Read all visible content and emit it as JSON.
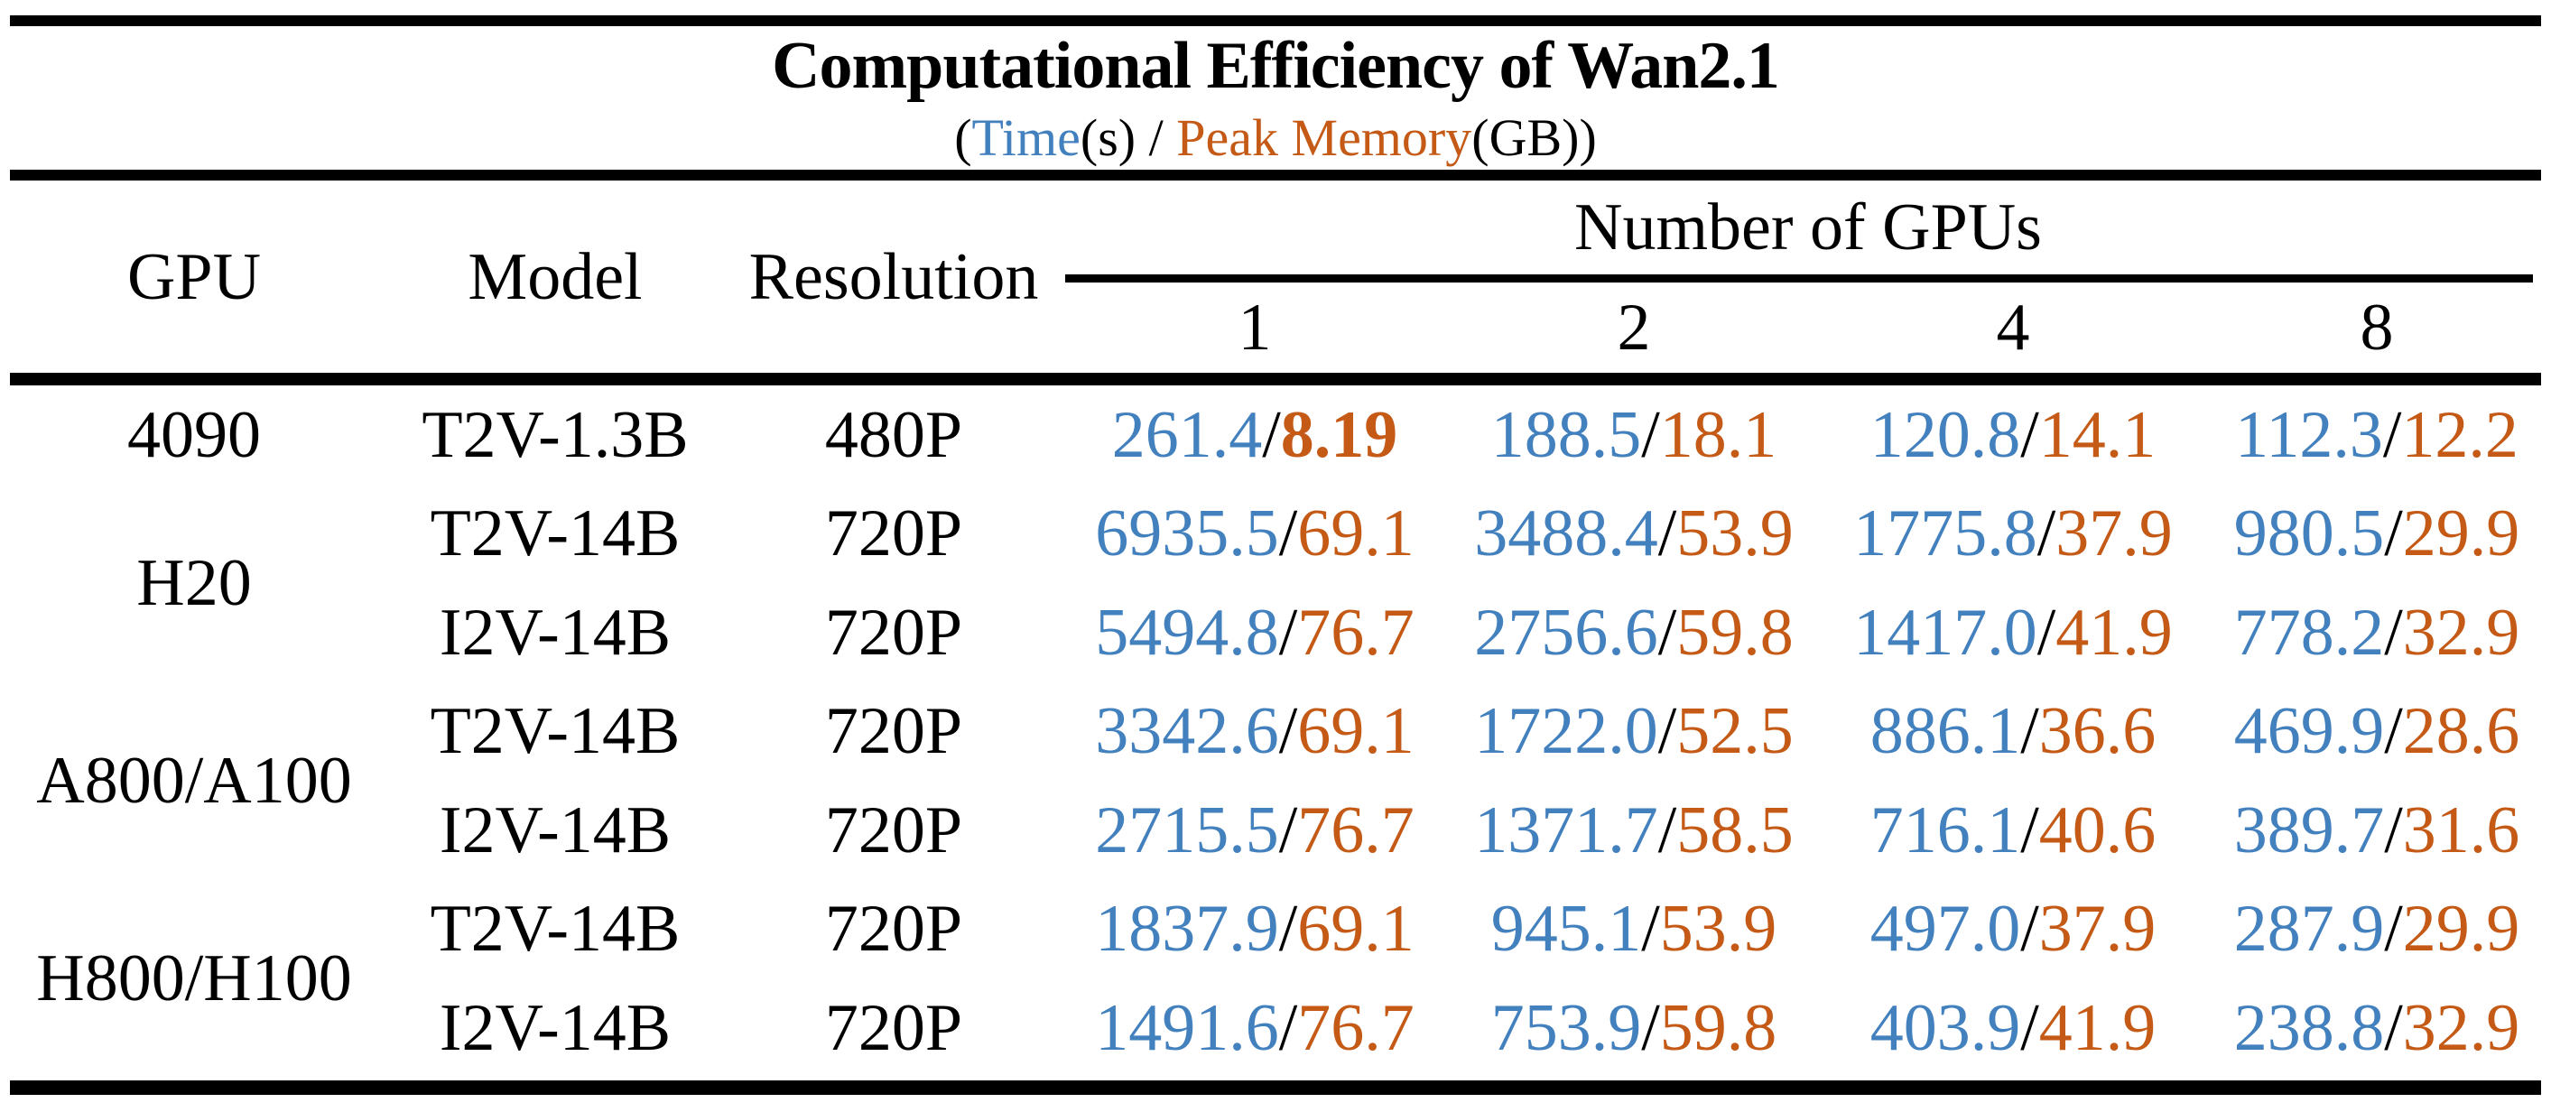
{
  "title": "Computational Efficiency of Wan2.1",
  "subtitle": {
    "open": "(",
    "time_label": "Time",
    "time_unit": "(s)",
    "separator": " / ",
    "memory_label": "Peak Memory",
    "memory_unit": "(GB)",
    "close": ")"
  },
  "colors": {
    "time": "#4280BE",
    "memory": "#C45A16",
    "text": "#000000",
    "background": "#FFFFFF"
  },
  "table": {
    "columns": [
      "GPU",
      "Model",
      "Resolution"
    ],
    "group_header": "Number of GPUs",
    "gpu_counts": [
      "1",
      "2",
      "4",
      "8"
    ],
    "separator": "/",
    "groups": [
      {
        "gpu": "4090",
        "rows": [
          {
            "model": "T2V-1.3B",
            "resolution": "480P",
            "values": [
              {
                "time": "261.4",
                "memory": "8.19",
                "bold_memory": true
              },
              {
                "time": "188.5",
                "memory": "18.1"
              },
              {
                "time": "120.8",
                "memory": "14.1"
              },
              {
                "time": "112.3",
                "memory": "12.2"
              }
            ]
          }
        ]
      },
      {
        "gpu": "H20",
        "rows": [
          {
            "model": "T2V-14B",
            "resolution": "720P",
            "values": [
              {
                "time": "6935.5",
                "memory": "69.1"
              },
              {
                "time": "3488.4",
                "memory": "53.9"
              },
              {
                "time": "1775.8",
                "memory": "37.9"
              },
              {
                "time": "980.5",
                "memory": "29.9"
              }
            ]
          },
          {
            "model": "I2V-14B",
            "resolution": "720P",
            "values": [
              {
                "time": "5494.8",
                "memory": "76.7"
              },
              {
                "time": "2756.6",
                "memory": "59.8"
              },
              {
                "time": "1417.0",
                "memory": "41.9"
              },
              {
                "time": "778.2",
                "memory": "32.9"
              }
            ]
          }
        ]
      },
      {
        "gpu": "A800/A100",
        "rows": [
          {
            "model": "T2V-14B",
            "resolution": "720P",
            "values": [
              {
                "time": "3342.6",
                "memory": "69.1"
              },
              {
                "time": "1722.0",
                "memory": "52.5"
              },
              {
                "time": "886.1",
                "memory": "36.6"
              },
              {
                "time": "469.9",
                "memory": "28.6"
              }
            ]
          },
          {
            "model": "I2V-14B",
            "resolution": "720P",
            "values": [
              {
                "time": "2715.5",
                "memory": "76.7"
              },
              {
                "time": "1371.7",
                "memory": "58.5"
              },
              {
                "time": "716.1",
                "memory": "40.6"
              },
              {
                "time": "389.7",
                "memory": "31.6"
              }
            ]
          }
        ]
      },
      {
        "gpu": "H800/H100",
        "rows": [
          {
            "model": "T2V-14B",
            "resolution": "720P",
            "values": [
              {
                "time": "1837.9",
                "memory": "69.1"
              },
              {
                "time": "945.1",
                "memory": "53.9"
              },
              {
                "time": "497.0",
                "memory": "37.9"
              },
              {
                "time": "287.9",
                "memory": "29.9"
              }
            ]
          },
          {
            "model": "I2V-14B",
            "resolution": "720P",
            "values": [
              {
                "time": "1491.6",
                "memory": "76.7"
              },
              {
                "time": "753.9",
                "memory": "59.8"
              },
              {
                "time": "403.9",
                "memory": "41.9"
              },
              {
                "time": "238.8",
                "memory": "32.9"
              }
            ]
          }
        ]
      }
    ]
  },
  "chart_data": {
    "type": "table",
    "title": "Computational Efficiency of Wan2.1",
    "subtitle": "(Time(s) / Peak Memory(GB))",
    "column_group": {
      "label": "Number of GPUs",
      "columns": [
        "1",
        "2",
        "4",
        "8"
      ]
    },
    "columns": [
      "GPU",
      "Model",
      "Resolution",
      "1",
      "2",
      "4",
      "8"
    ],
    "rows": [
      [
        "4090",
        "T2V-1.3B",
        "480P",
        "261.4/8.19",
        "188.5/18.1",
        "120.8/14.1",
        "112.3/12.2"
      ],
      [
        "H20",
        "T2V-14B",
        "720P",
        "6935.5/69.1",
        "3488.4/53.9",
        "1775.8/37.9",
        "980.5/29.9"
      ],
      [
        "H20",
        "I2V-14B",
        "720P",
        "5494.8/76.7",
        "2756.6/59.8",
        "1417.0/41.9",
        "778.2/32.9"
      ],
      [
        "A800/A100",
        "T2V-14B",
        "720P",
        "3342.6/69.1",
        "1722.0/52.5",
        "886.1/36.6",
        "469.9/28.6"
      ],
      [
        "A800/A100",
        "I2V-14B",
        "720P",
        "2715.5/76.7",
        "1371.7/58.5",
        "716.1/40.6",
        "389.7/31.6"
      ],
      [
        "H800/H100",
        "T2V-14B",
        "720P",
        "1837.9/69.1",
        "945.1/53.9",
        "497.0/37.9",
        "287.9/29.9"
      ],
      [
        "H800/H100",
        "I2V-14B",
        "720P",
        "1491.6/76.7",
        "753.9/59.8",
        "403.9/41.9",
        "238.8/32.9"
      ]
    ],
    "units": {
      "time": "s",
      "memory": "GB"
    }
  }
}
